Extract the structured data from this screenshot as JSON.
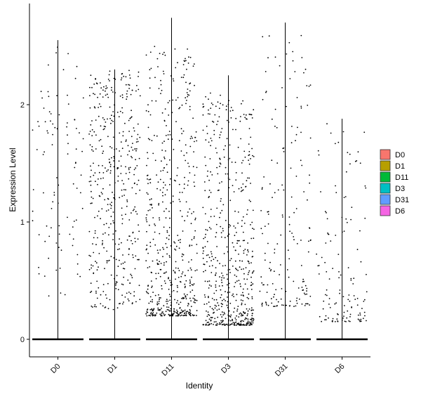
{
  "chart_data": {
    "type": "violin",
    "xlabel": "Identity",
    "ylabel": "Expression Level",
    "categories": [
      "D0",
      "D1",
      "D11",
      "D3",
      "D31",
      "D6"
    ],
    "ylim": [
      -0.15,
      2.85
    ],
    "yticks": [
      0,
      1,
      2
    ],
    "max_values": [
      2.55,
      2.3,
      2.74,
      2.25,
      2.7,
      1.88
    ],
    "legend": {
      "position": "right",
      "entries": [
        {
          "label": "D0",
          "color": "#F8766D"
        },
        {
          "label": "D1",
          "color": "#B79F00"
        },
        {
          "label": "D11",
          "color": "#00BA38"
        },
        {
          "label": "D3",
          "color": "#00BFC4"
        },
        {
          "label": "D31",
          "color": "#619CFF"
        },
        {
          "label": "D6",
          "color": "#F564E3"
        }
      ]
    },
    "grid": false
  }
}
